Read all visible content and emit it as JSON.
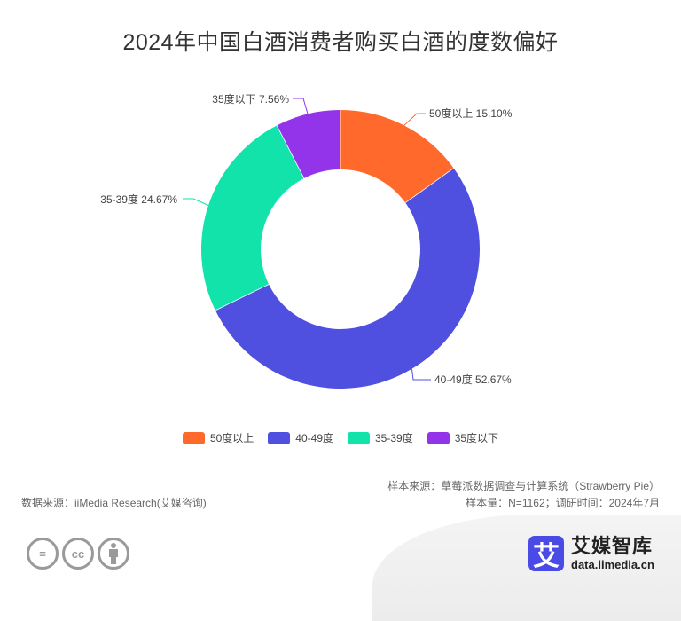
{
  "title": "2024年中国白酒消费者购买白酒的度数偏好",
  "chart_data": {
    "type": "pie",
    "subtype": "donut",
    "title": "2024年中国白酒消费者购买白酒的度数偏好",
    "categories": [
      "50度以上",
      "40-49度",
      "35-39度",
      "35度以下"
    ],
    "values": [
      15.1,
      52.67,
      24.67,
      7.56
    ],
    "unit": "%",
    "colors": [
      "#FF6A2C",
      "#5050E0",
      "#12E3AA",
      "#9333EA"
    ],
    "labels": [
      "50度以上 15.10%",
      "40-49度 52.67%",
      "35-39度 24.67%",
      "35度以下 7.56%"
    ],
    "legend_position": "bottom",
    "inner_radius_ratio": 0.57
  },
  "legend": [
    {
      "label": "50度以上",
      "color": "#FF6A2C"
    },
    {
      "label": "40-49度",
      "color": "#5050E0"
    },
    {
      "label": "35-39度",
      "color": "#12E3AA"
    },
    {
      "label": "35度以下",
      "color": "#9333EA"
    }
  ],
  "footer": {
    "data_source": "数据来源：iiMedia Research(艾媒咨询)",
    "sample_source": "样本来源：草莓派数据调查与计算系统（Strawberry Pie）",
    "sample_info": "样本量：N=1162；调研时间：2024年7月"
  },
  "license_icons": [
    "equals-icon",
    "cc-icon",
    "person-icon"
  ],
  "license_glyphs": [
    "=",
    "cc",
    ""
  ],
  "brand": {
    "logo_char": "艾",
    "name": "艾媒智库",
    "url": "data.iimedia.cn"
  }
}
